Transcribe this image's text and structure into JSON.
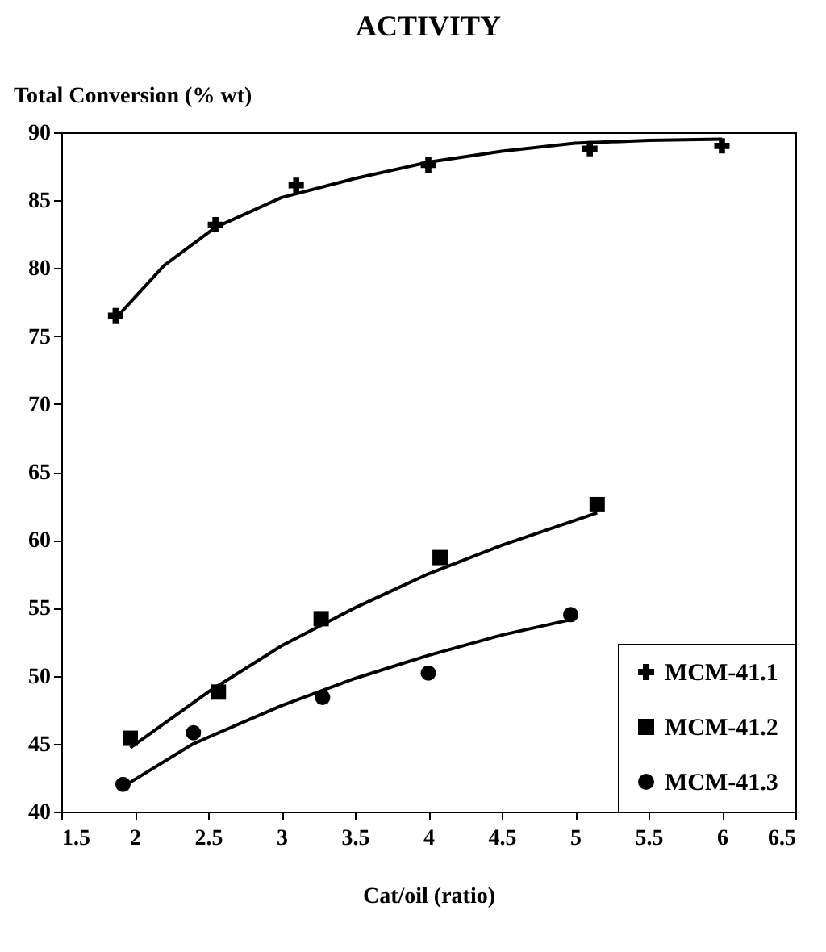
{
  "chart_data": {
    "type": "scatter",
    "title": "ACTIVITY",
    "xlabel": "Cat/oil (ratio)",
    "ylabel": "Total Conversion (% wt)",
    "xlim": [
      1.5,
      6.5
    ],
    "xticks": [
      1.5,
      2,
      2.5,
      3,
      3.5,
      4,
      4.5,
      5,
      5.5,
      6,
      6.5
    ],
    "ylim": [
      40,
      90
    ],
    "yticks": [
      40,
      45,
      50,
      55,
      60,
      65,
      70,
      75,
      80,
      85,
      90
    ],
    "grid": false,
    "legend": "bottom right",
    "series": [
      {
        "name": "MCM-41.1",
        "color": "#000000",
        "marker": "cross",
        "x": [
          1.87,
          2.55,
          3.1,
          4.0,
          5.1,
          6.0
        ],
        "values": [
          76.5,
          83.2,
          86.1,
          87.6,
          88.8,
          89.0
        ]
      },
      {
        "name": "MCM-41.2",
        "color": "#000000",
        "marker": "square",
        "x": [
          1.97,
          2.57,
          3.27,
          4.08,
          5.15
        ],
        "values": [
          45.4,
          48.8,
          54.2,
          58.7,
          62.6
        ]
      },
      {
        "name": "MCM-41.3",
        "color": "#000000",
        "marker": "circle",
        "x": [
          1.92,
          2.4,
          3.28,
          4.0,
          4.97
        ],
        "values": [
          42.0,
          45.8,
          48.4,
          50.2,
          54.5
        ]
      },
      {
        "type": "line",
        "color": "#000000",
        "line_style": "solid",
        "x": [
          1.87,
          2.2,
          2.55,
          3.0,
          3.5,
          4.0,
          4.5,
          5.0,
          5.5,
          6.0
        ],
        "values": [
          76.3,
          80.2,
          83.0,
          85.2,
          86.6,
          87.8,
          88.6,
          89.2,
          89.4,
          89.5
        ]
      },
      {
        "type": "line",
        "color": "#000000",
        "line_style": "solid",
        "x": [
          1.97,
          2.5,
          3.0,
          3.5,
          4.0,
          4.5,
          5.15
        ],
        "values": [
          44.7,
          48.8,
          52.2,
          55.0,
          57.5,
          59.6,
          62.0
        ]
      },
      {
        "type": "line",
        "color": "#000000",
        "line_style": "solid",
        "x": [
          1.9,
          2.4,
          3.0,
          3.5,
          4.0,
          4.5,
          5.0
        ],
        "values": [
          41.7,
          45.0,
          47.8,
          49.8,
          51.5,
          53.0,
          54.2
        ]
      }
    ]
  }
}
